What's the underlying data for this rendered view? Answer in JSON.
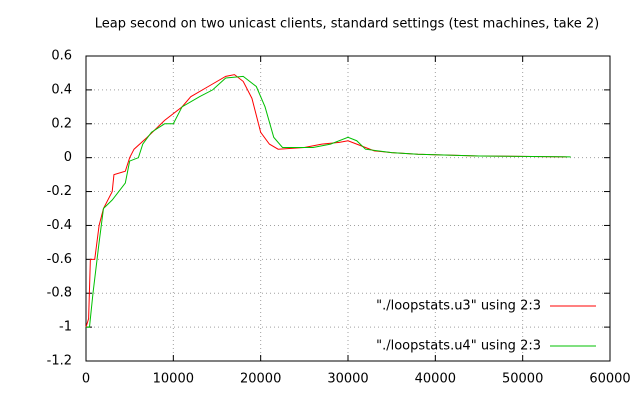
{
  "chart_data": {
    "type": "line",
    "title": "Leap second on two unicast clients, standard settings (test machines, take 2)",
    "xlim": [
      0,
      60000
    ],
    "xticks": [
      0,
      10000,
      20000,
      30000,
      40000,
      50000,
      60000
    ],
    "ylim": [
      -1.2,
      0.6
    ],
    "yticks": [
      -1.2,
      -1,
      -0.8,
      -0.6,
      -0.4,
      -0.2,
      0,
      0.2,
      0.4,
      0.6
    ],
    "grid": true,
    "legend": "bottom right",
    "series": [
      {
        "name": "\"./loopstats.u3\" using 2:3",
        "color": "#ff0000",
        "x": [
          0,
          300,
          500,
          1000,
          1500,
          2000,
          3000,
          3200,
          4500,
          5000,
          5500,
          7000,
          9000,
          11000,
          12000,
          14000,
          16000,
          17000,
          18000,
          19000,
          20000,
          21000,
          22000,
          25000,
          27000,
          29000,
          30000,
          31000,
          33000,
          35000,
          38000,
          45000,
          55000
        ],
        "values": [
          -1.0,
          -0.95,
          -0.6,
          -0.6,
          -0.4,
          -0.3,
          -0.2,
          -0.1,
          -0.08,
          0.0,
          0.05,
          0.12,
          0.22,
          0.3,
          0.36,
          0.42,
          0.48,
          0.49,
          0.45,
          0.35,
          0.15,
          0.08,
          0.05,
          0.06,
          0.08,
          0.09,
          0.1,
          0.08,
          0.04,
          0.03,
          0.02,
          0.01,
          0.005
        ]
      },
      {
        "name": "\"./loopstats.u4\" using 2:3",
        "color": "#00c000",
        "x": [
          0,
          400,
          800,
          1500,
          2000,
          3000,
          4500,
          5000,
          6000,
          6500,
          7500,
          9000,
          10000,
          11000,
          13000,
          14500,
          16000,
          18000,
          19500,
          20500,
          21500,
          22500,
          26000,
          28000,
          30000,
          31000,
          32000,
          35000,
          38000,
          45000,
          55500
        ],
        "values": [
          -1.0,
          -1.0,
          -0.8,
          -0.5,
          -0.3,
          -0.25,
          -0.15,
          -0.02,
          0.0,
          0.08,
          0.15,
          0.2,
          0.2,
          0.3,
          0.36,
          0.4,
          0.47,
          0.48,
          0.42,
          0.3,
          0.12,
          0.06,
          0.06,
          0.08,
          0.12,
          0.1,
          0.05,
          0.03,
          0.02,
          0.01,
          0.005
        ]
      }
    ]
  }
}
